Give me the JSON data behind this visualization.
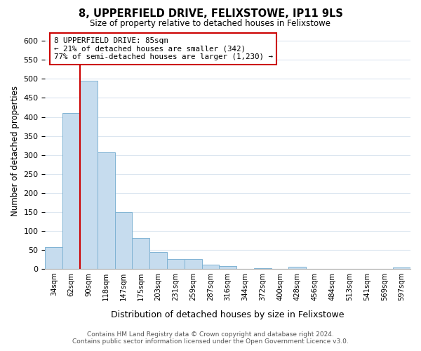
{
  "title": "8, UPPERFIELD DRIVE, FELIXSTOWE, IP11 9LS",
  "subtitle": "Size of property relative to detached houses in Felixstowe",
  "xlabel": "Distribution of detached houses by size in Felixstowe",
  "ylabel": "Number of detached properties",
  "bar_values": [
    57,
    410,
    495,
    307,
    150,
    82,
    44,
    25,
    25,
    10,
    8,
    0,
    2,
    0,
    5,
    0,
    0,
    0,
    0,
    0,
    4
  ],
  "bar_labels": [
    "34sqm",
    "62sqm",
    "90sqm",
    "118sqm",
    "147sqm",
    "175sqm",
    "203sqm",
    "231sqm",
    "259sqm",
    "287sqm",
    "316sqm",
    "344sqm",
    "372sqm",
    "400sqm",
    "428sqm",
    "456sqm",
    "484sqm",
    "513sqm",
    "541sqm",
    "569sqm",
    "597sqm"
  ],
  "bar_color": "#c6dcee",
  "bar_edge_color": "#7fb3d3",
  "annotation_box_color": "#ffffff",
  "annotation_border_color": "#cc0000",
  "vline_color": "#cc0000",
  "annotation_title": "8 UPPERFIELD DRIVE: 85sqm",
  "annotation_line1": "← 21% of detached houses are smaller (342)",
  "annotation_line2": "77% of semi-detached houses are larger (1,230) →",
  "ylim": [
    0,
    620
  ],
  "yticks": [
    0,
    50,
    100,
    150,
    200,
    250,
    300,
    350,
    400,
    450,
    500,
    550,
    600
  ],
  "footer_line1": "Contains HM Land Registry data © Crown copyright and database right 2024.",
  "footer_line2": "Contains public sector information licensed under the Open Government Licence v3.0.",
  "background_color": "#ffffff",
  "grid_color": "#dce6f0"
}
